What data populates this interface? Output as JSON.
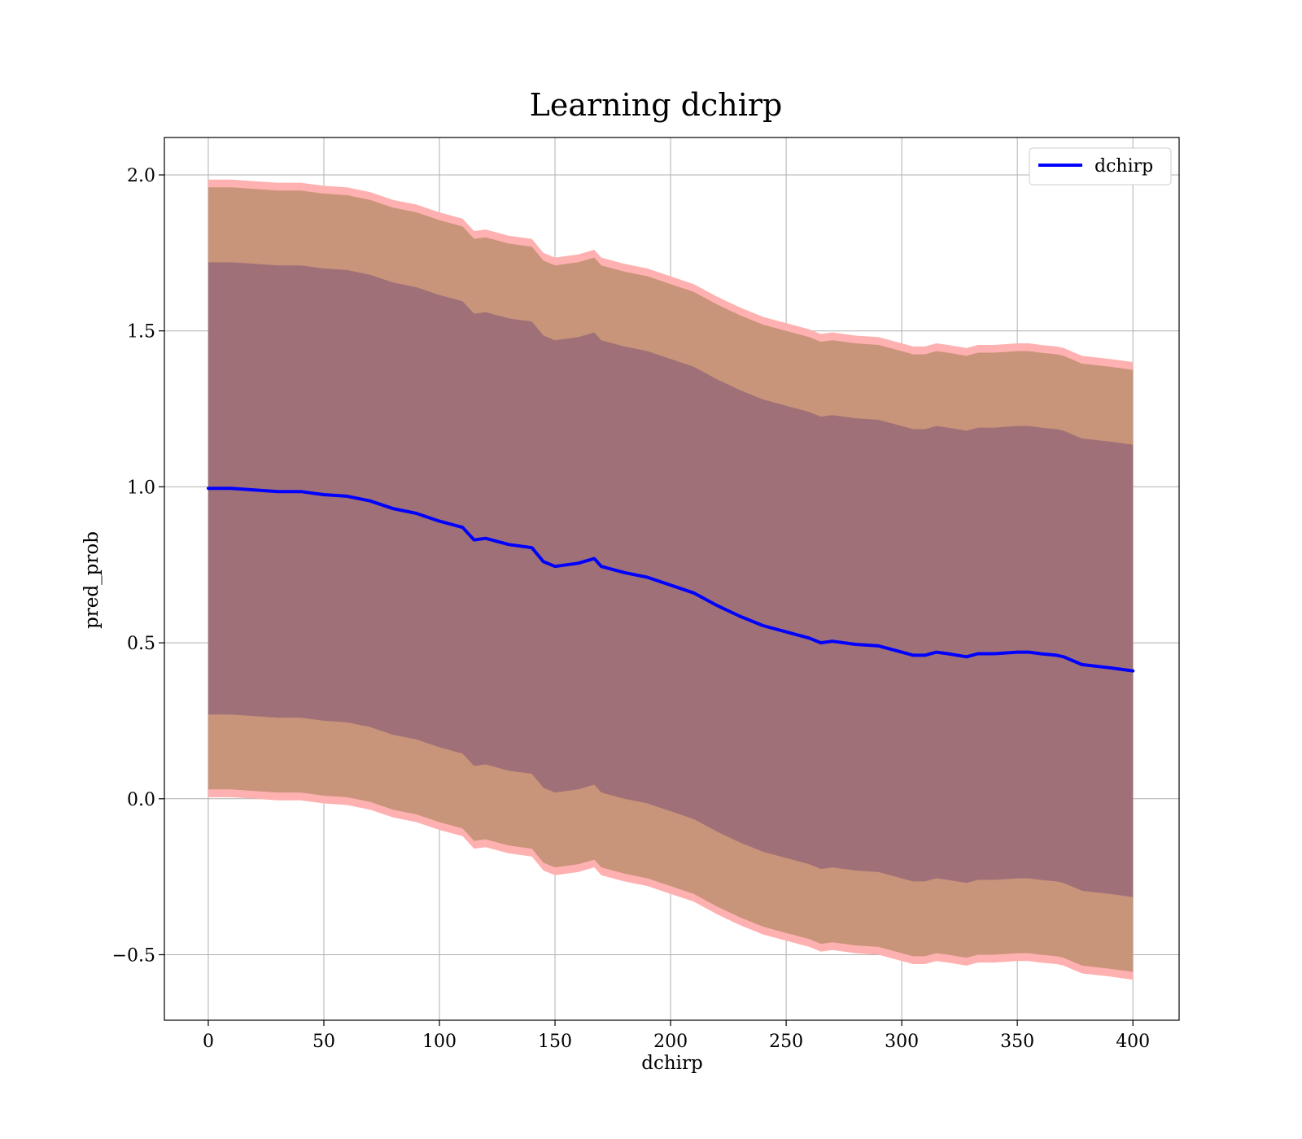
{
  "chart_data": {
    "type": "line",
    "title": "Learning dchirp",
    "xlabel": "dchirp",
    "ylabel": "pred_prob",
    "xlim": [
      -19,
      420
    ],
    "ylim": [
      -0.71,
      2.12
    ],
    "xticks": [
      0,
      50,
      100,
      150,
      200,
      250,
      300,
      350,
      400
    ],
    "yticks": [
      -0.5,
      0.0,
      0.5,
      1.0,
      1.5,
      2.0
    ],
    "ytick_labels": [
      "−0.5",
      "0.0",
      "0.5",
      "1.0",
      "1.5",
      "2.0"
    ],
    "grid": true,
    "legend": {
      "position": "top-right",
      "entries": [
        "dchirp"
      ]
    },
    "colors": {
      "line": "#0000ff",
      "band_3sigma": "#ffb0b0",
      "band_2sigma": "#c8947a",
      "band_1sigma": "#a07078",
      "grid": "#b0b0b0"
    },
    "x": [
      0,
      10,
      20,
      30,
      40,
      50,
      60,
      70,
      80,
      90,
      100,
      110,
      115,
      120,
      130,
      140,
      145,
      150,
      160,
      167,
      170,
      180,
      190,
      200,
      210,
      220,
      230,
      240,
      250,
      260,
      265,
      270,
      280,
      290,
      300,
      305,
      310,
      315,
      320,
      328,
      333,
      340,
      350,
      355,
      360,
      367,
      370,
      378,
      390,
      400
    ],
    "series": [
      {
        "name": "dchirp",
        "values": [
          0.995,
          0.995,
          0.99,
          0.985,
          0.985,
          0.975,
          0.97,
          0.955,
          0.93,
          0.915,
          0.89,
          0.87,
          0.83,
          0.835,
          0.815,
          0.805,
          0.76,
          0.745,
          0.755,
          0.77,
          0.745,
          0.725,
          0.71,
          0.685,
          0.66,
          0.62,
          0.585,
          0.555,
          0.535,
          0.515,
          0.5,
          0.505,
          0.495,
          0.49,
          0.47,
          0.46,
          0.46,
          0.47,
          0.465,
          0.455,
          0.465,
          0.465,
          0.47,
          0.47,
          0.465,
          0.46,
          0.455,
          0.43,
          0.42,
          0.41
        ],
        "band_1sigma_halfwidth": 0.725,
        "band_2sigma_halfwidth": 0.965,
        "band_3sigma_halfwidth": 0.99
      }
    ]
  }
}
